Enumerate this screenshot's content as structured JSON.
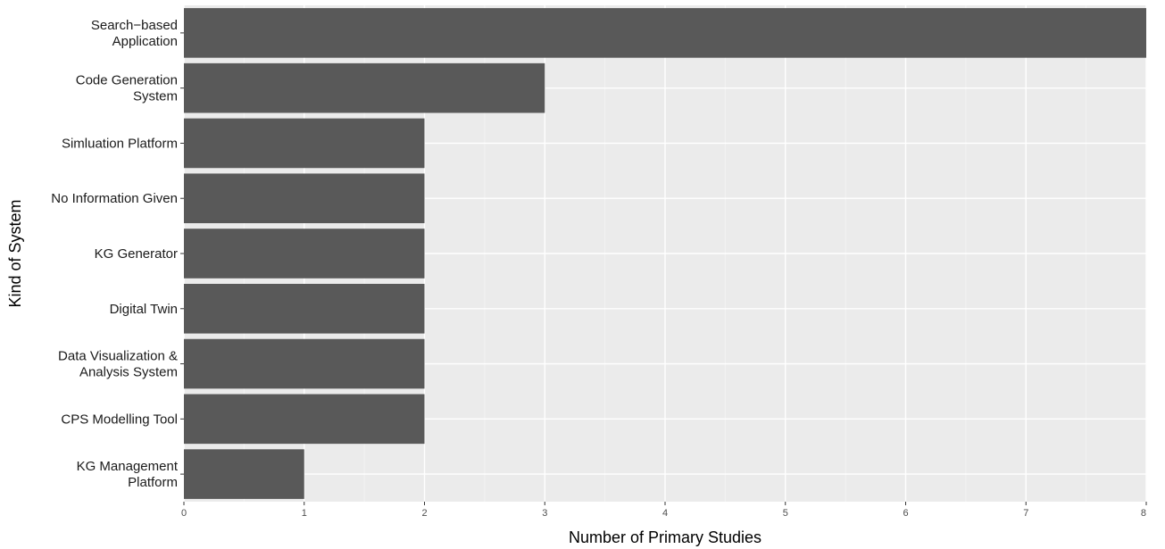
{
  "chart_data": {
    "type": "bar",
    "orientation": "horizontal",
    "categories": [
      [
        "Search−based",
        "Application"
      ],
      [
        "Code Generation",
        "System"
      ],
      [
        "Simluation Platform"
      ],
      [
        "No Information Given"
      ],
      [
        "KG Generator"
      ],
      [
        "Digital Twin"
      ],
      [
        "Data Visualization &",
        "Analysis System"
      ],
      [
        "CPS Modelling Tool"
      ],
      [
        "KG Management",
        "Platform"
      ]
    ],
    "values": [
      8,
      3,
      2,
      2,
      2,
      2,
      2,
      2,
      1
    ],
    "xlabel": "Number of Primary Studies",
    "ylabel": "Kind of System",
    "xlim": [
      0,
      8
    ],
    "x_ticks": [
      "0",
      "1",
      "2",
      "3",
      "4",
      "5",
      "6",
      "7",
      "8"
    ],
    "grid": true,
    "colors": {
      "bar": "#595959",
      "panel": "#ebebeb",
      "grid_major": "#ffffff",
      "grid_minor": "#f5f5f5"
    }
  }
}
